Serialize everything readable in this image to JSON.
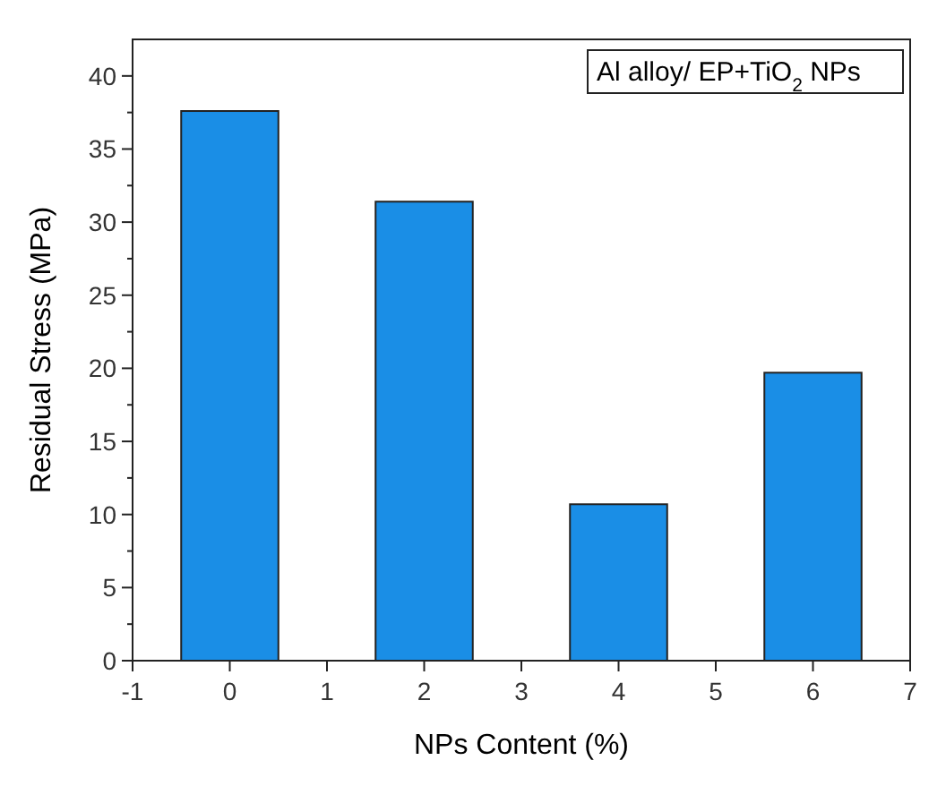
{
  "chart_data": {
    "type": "bar",
    "xlabel": "NPs Content (%)",
    "ylabel": "Residual Stress (MPa)",
    "x": [
      0,
      2,
      4,
      6
    ],
    "values": [
      37.6,
      31.4,
      10.7,
      19.7
    ],
    "color": "#1a8ee6",
    "xlim": [
      -1,
      7
    ],
    "xticks": [
      -1,
      0,
      1,
      2,
      3,
      4,
      5,
      6,
      7
    ],
    "ylim": [
      0,
      42.5
    ],
    "yticks": [
      0,
      {
        "value": 2.5,
        "label": null
      },
      5,
      {
        "value": 7.5,
        "label": null
      },
      10,
      {
        "value": 12.5,
        "label": null
      },
      15,
      {
        "value": 17.5,
        "label": null
      },
      20,
      {
        "value": 22.5,
        "label": null
      },
      25,
      {
        "value": 27.5,
        "label": null
      },
      30,
      {
        "value": 32.5,
        "label": null
      },
      35,
      {
        "value": 37.5,
        "label": null
      },
      40
    ],
    "annotations": [
      "Al alloy/ EP+TiO$_{2}$ NPs"
    ],
    "grid": false
  }
}
